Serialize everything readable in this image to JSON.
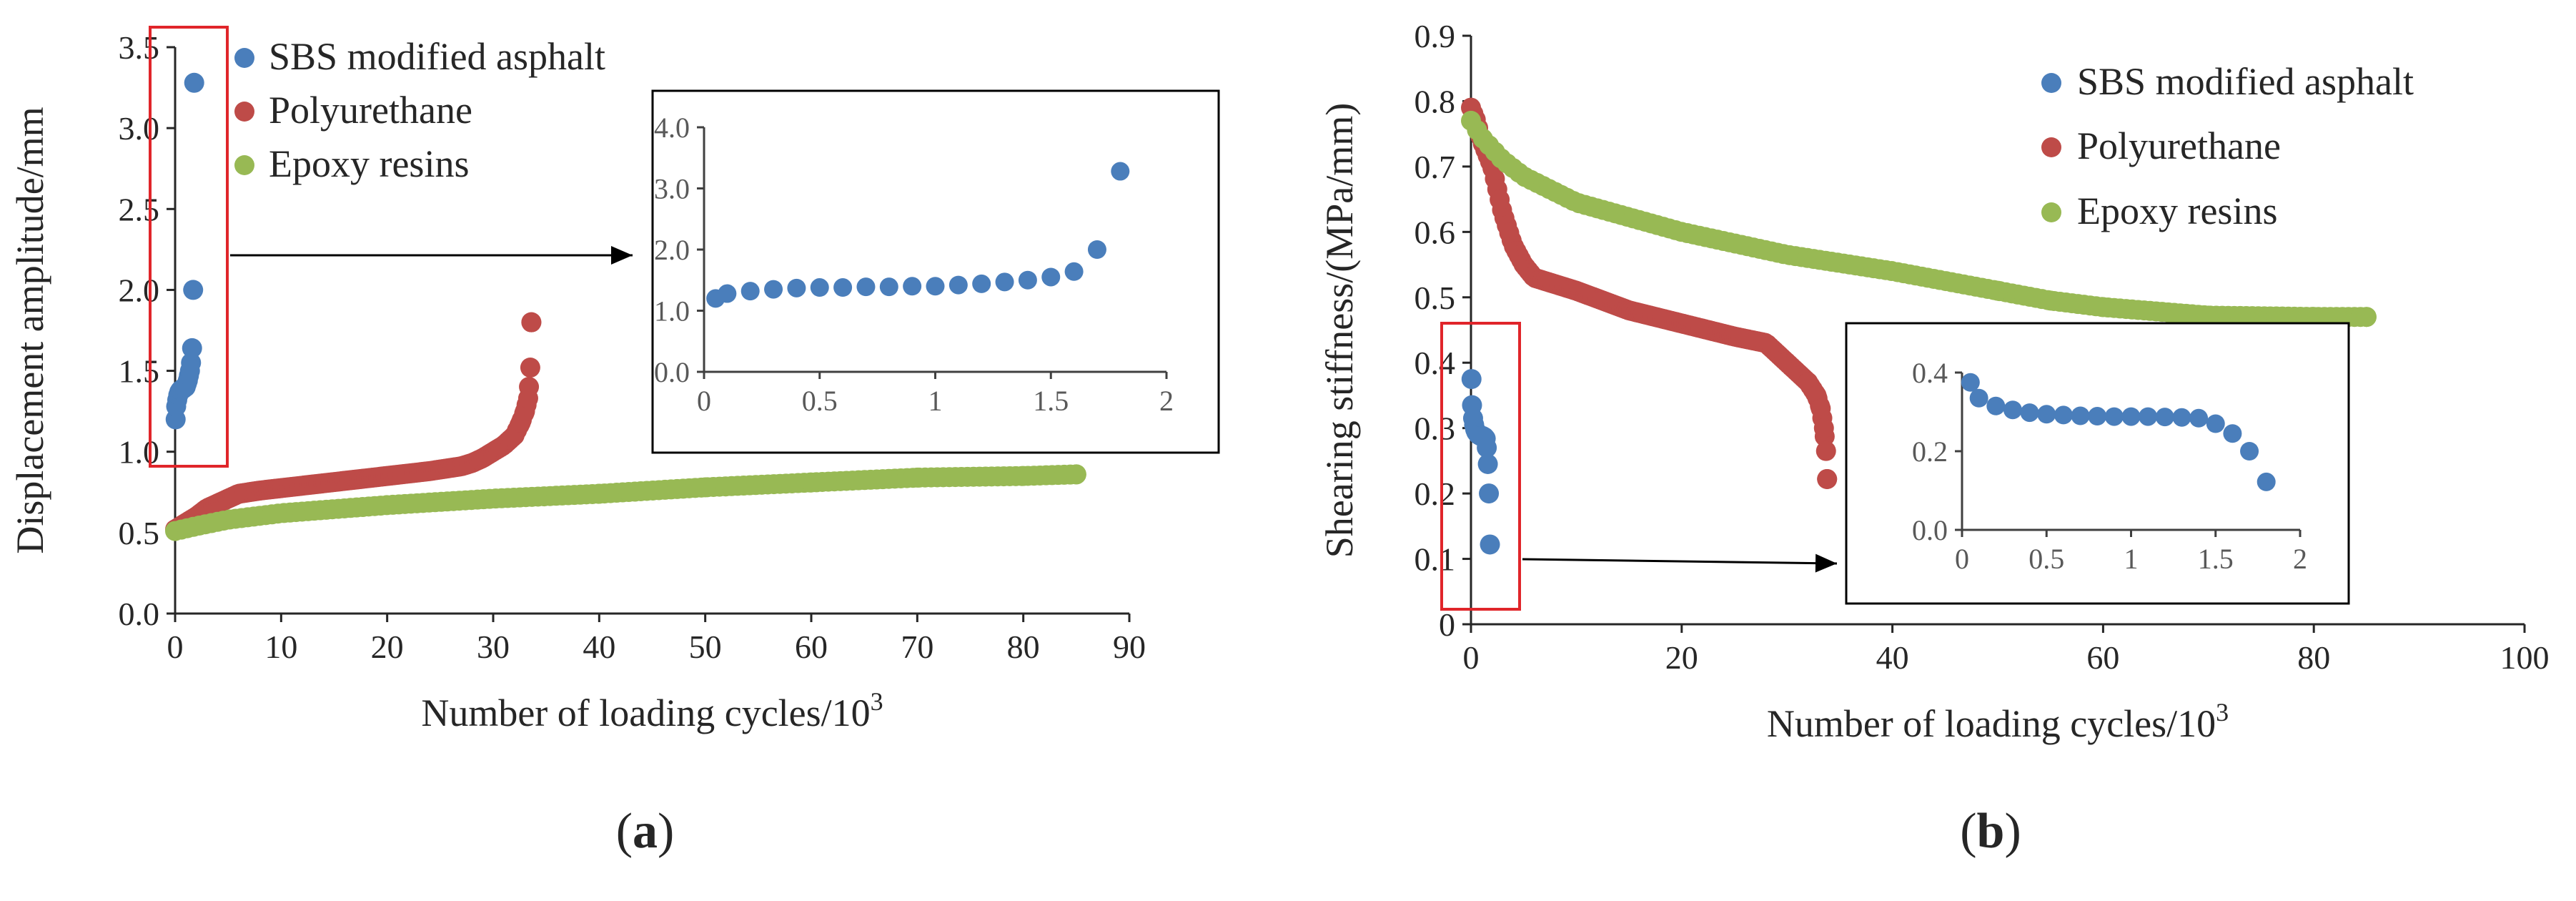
{
  "colors": {
    "sbs": "#4a7ebb",
    "polyurethane": "#be4b48",
    "epoxy": "#98b954",
    "highlight": "#e0252a"
  },
  "chart_data": [
    {
      "type": "scatter",
      "panel_label": "(a)",
      "xlabel": "Number of loading cycles/10",
      "xlabel_sup": "3",
      "ylabel": "Displacement amplitude/mm",
      "xlim": [
        0,
        90
      ],
      "ylim": [
        0,
        3.5
      ],
      "xticks": [
        "0",
        "10",
        "20",
        "30",
        "40",
        "50",
        "60",
        "70",
        "80",
        "90"
      ],
      "yticks": [
        "0.0",
        "0.5",
        "1.0",
        "1.5",
        "2.0",
        "2.5",
        "3.0",
        "3.5"
      ],
      "legend": [
        "SBS modified asphalt",
        "Polyurethane",
        "Epoxy resins"
      ],
      "series": [
        {
          "name": "SBS modified asphalt",
          "color_key": "sbs",
          "x": [
            0.05,
            0.1,
            0.2,
            0.3,
            0.4,
            0.5,
            0.6,
            0.7,
            0.8,
            0.9,
            1.0,
            1.1,
            1.2,
            1.3,
            1.4,
            1.5,
            1.6,
            1.7,
            1.8
          ],
          "y": [
            1.2,
            1.28,
            1.32,
            1.35,
            1.37,
            1.38,
            1.38,
            1.39,
            1.39,
            1.4,
            1.4,
            1.42,
            1.44,
            1.47,
            1.5,
            1.55,
            1.64,
            2.0,
            3.28
          ]
        },
        {
          "name": "Polyurethane",
          "color_key": "polyurethane",
          "curve": [
            [
              0,
              0.52
            ],
            [
              1,
              0.56
            ],
            [
              2,
              0.6
            ],
            [
              3,
              0.65
            ],
            [
              4,
              0.68
            ],
            [
              5,
              0.71
            ],
            [
              6,
              0.74
            ],
            [
              8,
              0.76
            ],
            [
              12,
              0.79
            ],
            [
              16,
              0.82
            ],
            [
              20,
              0.85
            ],
            [
              24,
              0.88
            ],
            [
              27,
              0.91
            ],
            [
              28,
              0.93
            ],
            [
              29,
              0.96
            ],
            [
              30,
              1.0
            ],
            [
              31,
              1.04
            ],
            [
              32,
              1.1
            ],
            [
              32.6,
              1.18
            ],
            [
              33,
              1.25
            ],
            [
              33.3,
              1.33
            ],
            [
              33.5,
              1.52
            ],
            [
              33.6,
              1.8
            ]
          ]
        },
        {
          "name": "Epoxy resins",
          "color_key": "epoxy",
          "curve": [
            [
              0,
              0.51
            ],
            [
              2,
              0.54
            ],
            [
              5,
              0.58
            ],
            [
              10,
              0.62
            ],
            [
              20,
              0.67
            ],
            [
              30,
              0.71
            ],
            [
              40,
              0.74
            ],
            [
              50,
              0.78
            ],
            [
              60,
              0.81
            ],
            [
              70,
              0.84
            ],
            [
              80,
              0.85
            ],
            [
              85,
              0.86
            ]
          ]
        }
      ],
      "inset": {
        "xlim": [
          0,
          2
        ],
        "ylim": [
          0,
          4
        ],
        "xticks": [
          "0",
          "0.5",
          "1",
          "1.5",
          "2"
        ],
        "yticks": [
          "0.0",
          "1.0",
          "2.0",
          "3.0",
          "4.0"
        ],
        "series_name": "SBS modified asphalt"
      }
    },
    {
      "type": "scatter",
      "panel_label": "(b)",
      "xlabel": "Number of loading cycles/10",
      "xlabel_sup": "3",
      "ylabel": "Shearing stiffness/(MPa/mm)",
      "xlim": [
        0,
        100
      ],
      "ylim": [
        0,
        0.9
      ],
      "xticks": [
        "0",
        "20",
        "40",
        "60",
        "80",
        "100"
      ],
      "yticks": [
        "0",
        "0.1",
        "0.2",
        "0.3",
        "0.4",
        "0.5",
        "0.6",
        "0.7",
        "0.8",
        "0.9"
      ],
      "legend": [
        "SBS modified asphalt",
        "Polyurethane",
        "Epoxy resins"
      ],
      "series": [
        {
          "name": "SBS modified asphalt",
          "color_key": "sbs",
          "x": [
            0.05,
            0.1,
            0.2,
            0.3,
            0.4,
            0.5,
            0.6,
            0.7,
            0.8,
            0.9,
            1.0,
            1.1,
            1.2,
            1.3,
            1.4,
            1.5,
            1.6,
            1.7,
            1.8
          ],
          "y": [
            0.375,
            0.335,
            0.315,
            0.305,
            0.298,
            0.294,
            0.292,
            0.29,
            0.289,
            0.288,
            0.288,
            0.288,
            0.287,
            0.286,
            0.284,
            0.27,
            0.245,
            0.2,
            0.122
          ]
        },
        {
          "name": "Polyurethane",
          "color_key": "polyurethane",
          "curve": [
            [
              0,
              0.79
            ],
            [
              0.5,
              0.77
            ],
            [
              1,
              0.74
            ],
            [
              2,
              0.7
            ],
            [
              3,
              0.63
            ],
            [
              4,
              0.58
            ],
            [
              5,
              0.55
            ],
            [
              6,
              0.53
            ],
            [
              10,
              0.51
            ],
            [
              15,
              0.48
            ],
            [
              20,
              0.46
            ],
            [
              25,
              0.44
            ],
            [
              28,
              0.43
            ],
            [
              29,
              0.415
            ],
            [
              30,
              0.4
            ],
            [
              31,
              0.385
            ],
            [
              32,
              0.37
            ],
            [
              32.8,
              0.35
            ],
            [
              33.2,
              0.33
            ],
            [
              33.5,
              0.3
            ],
            [
              33.7,
              0.265
            ],
            [
              33.8,
              0.222
            ]
          ]
        },
        {
          "name": "Epoxy resins",
          "color_key": "epoxy",
          "curve": [
            [
              0,
              0.77
            ],
            [
              1,
              0.745
            ],
            [
              3,
              0.71
            ],
            [
              5,
              0.685
            ],
            [
              10,
              0.645
            ],
            [
              20,
              0.6
            ],
            [
              30,
              0.565
            ],
            [
              40,
              0.54
            ],
            [
              50,
              0.51
            ],
            [
              55,
              0.495
            ],
            [
              60,
              0.485
            ],
            [
              70,
              0.472
            ],
            [
              80,
              0.47
            ],
            [
              85,
              0.47
            ]
          ]
        }
      ],
      "inset": {
        "xlim": [
          0,
          2
        ],
        "ylim": [
          0,
          0.4
        ],
        "xticks": [
          "0",
          "0.5",
          "1",
          "1.5",
          "2"
        ],
        "yticks": [
          "0.0",
          "0.2",
          "0.4"
        ],
        "series_name": "SBS modified asphalt"
      }
    }
  ]
}
